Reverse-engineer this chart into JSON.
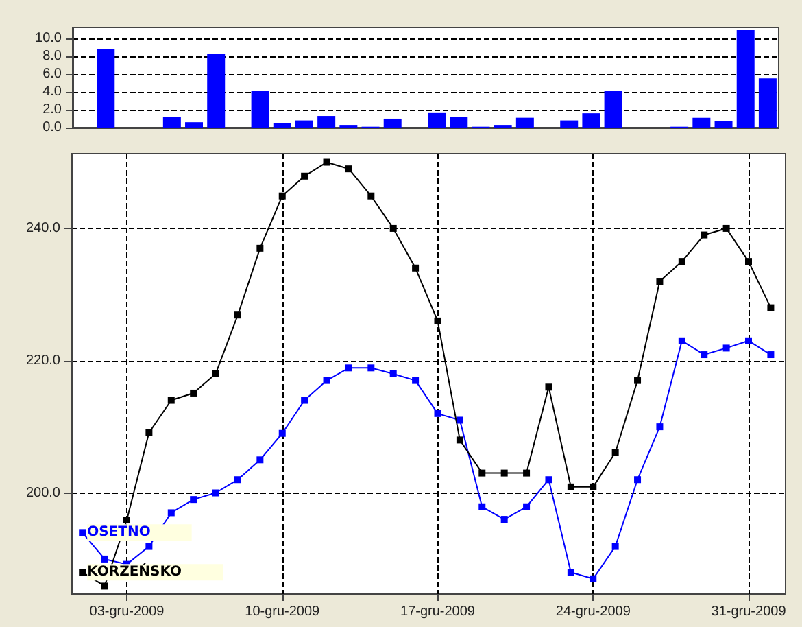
{
  "chart_data": [
    {
      "type": "bar",
      "categories": [
        null,
        null,
        null,
        null,
        null,
        null,
        null,
        null,
        null,
        null,
        null,
        null,
        null,
        null,
        null,
        null,
        null,
        null,
        null,
        null,
        null,
        null,
        null,
        null,
        null,
        null,
        null,
        null,
        null,
        null,
        null,
        null
      ],
      "values": [
        0,
        8.8,
        0,
        0,
        1.2,
        0.6,
        8.2,
        0,
        4.1,
        0.5,
        0.8,
        1.3,
        0.3,
        0.1,
        1.0,
        0,
        1.7,
        1.2,
        0.1,
        0.3,
        1.1,
        0,
        0.8,
        1.6,
        4.1,
        0,
        0,
        0.1,
        1.1,
        0.7,
        10.9,
        5.5
      ],
      "color": "#0000ff",
      "ylim": [
        0,
        11.2
      ],
      "yticks": [
        {
          "value": 0,
          "label": "0.0"
        },
        {
          "value": 2,
          "label": "2.0"
        },
        {
          "value": 4,
          "label": "4.0"
        },
        {
          "value": 6,
          "label": "6.0"
        },
        {
          "value": 8,
          "label": "8.0"
        },
        {
          "value": 10,
          "label": "10.0"
        }
      ],
      "grid": "y",
      "tick_labels": "y"
    },
    {
      "type": "line",
      "x": [
        "2009-12-01",
        "2009-12-02",
        "2009-12-03",
        "2009-12-04",
        "2009-12-05",
        "2009-12-06",
        "2009-12-07",
        "2009-12-08",
        "2009-12-09",
        "2009-12-10",
        "2009-12-11",
        "2009-12-12",
        "2009-12-13",
        "2009-12-14",
        "2009-12-15",
        "2009-12-16",
        "2009-12-17",
        "2009-12-18",
        "2009-12-19",
        "2009-12-20",
        "2009-12-21",
        "2009-12-22",
        "2009-12-23",
        "2009-12-24",
        "2009-12-25",
        "2009-12-26",
        "2009-12-27",
        "2009-12-28",
        "2009-12-29",
        "2009-12-30",
        "2009-12-31",
        "2010-01-01"
      ],
      "series": [
        {
          "name": "OSETNO",
          "color": "#0000ff",
          "values": [
            194,
            190,
            189.2,
            191.9,
            197,
            199,
            200,
            202,
            205,
            209,
            214,
            217,
            218.9,
            218.9,
            218,
            217,
            212,
            211,
            197.9,
            196,
            197.9,
            202,
            188,
            187,
            191.9,
            202,
            210,
            223,
            220.9,
            221.9,
            223,
            220.9
          ]
        },
        {
          "name": "KORZEŃSKO",
          "color": "#000000",
          "values": [
            188,
            185.9,
            195.9,
            209.1,
            214,
            215.1,
            218,
            226.9,
            237,
            244.9,
            247.9,
            250,
            249,
            244.9,
            240,
            234,
            226,
            208,
            203,
            203,
            203,
            216,
            200.9,
            200.9,
            206.1,
            217,
            232,
            235,
            239,
            240,
            235,
            228
          ]
        }
      ],
      "xlim": [
        "2009-11-30T12:00",
        "2010-01-01T16:00"
      ],
      "xticks": [
        {
          "value": "2009-12-03",
          "label": "03-gru-2009"
        },
        {
          "value": "2009-12-10",
          "label": "10-gru-2009"
        },
        {
          "value": "2009-12-17",
          "label": "17-gru-2009"
        },
        {
          "value": "2009-12-24",
          "label": "24-gru-2009"
        },
        {
          "value": "2009-12-31",
          "label": "31-gru-2009"
        }
      ],
      "ylim": [
        184.7,
        251.3
      ],
      "yticks": [
        {
          "value": 200,
          "label": "200.0"
        },
        {
          "value": 220,
          "label": "220.0"
        },
        {
          "value": 240,
          "label": "240.0"
        }
      ],
      "grid": true,
      "marker": "square",
      "line_style": "solid"
    }
  ]
}
